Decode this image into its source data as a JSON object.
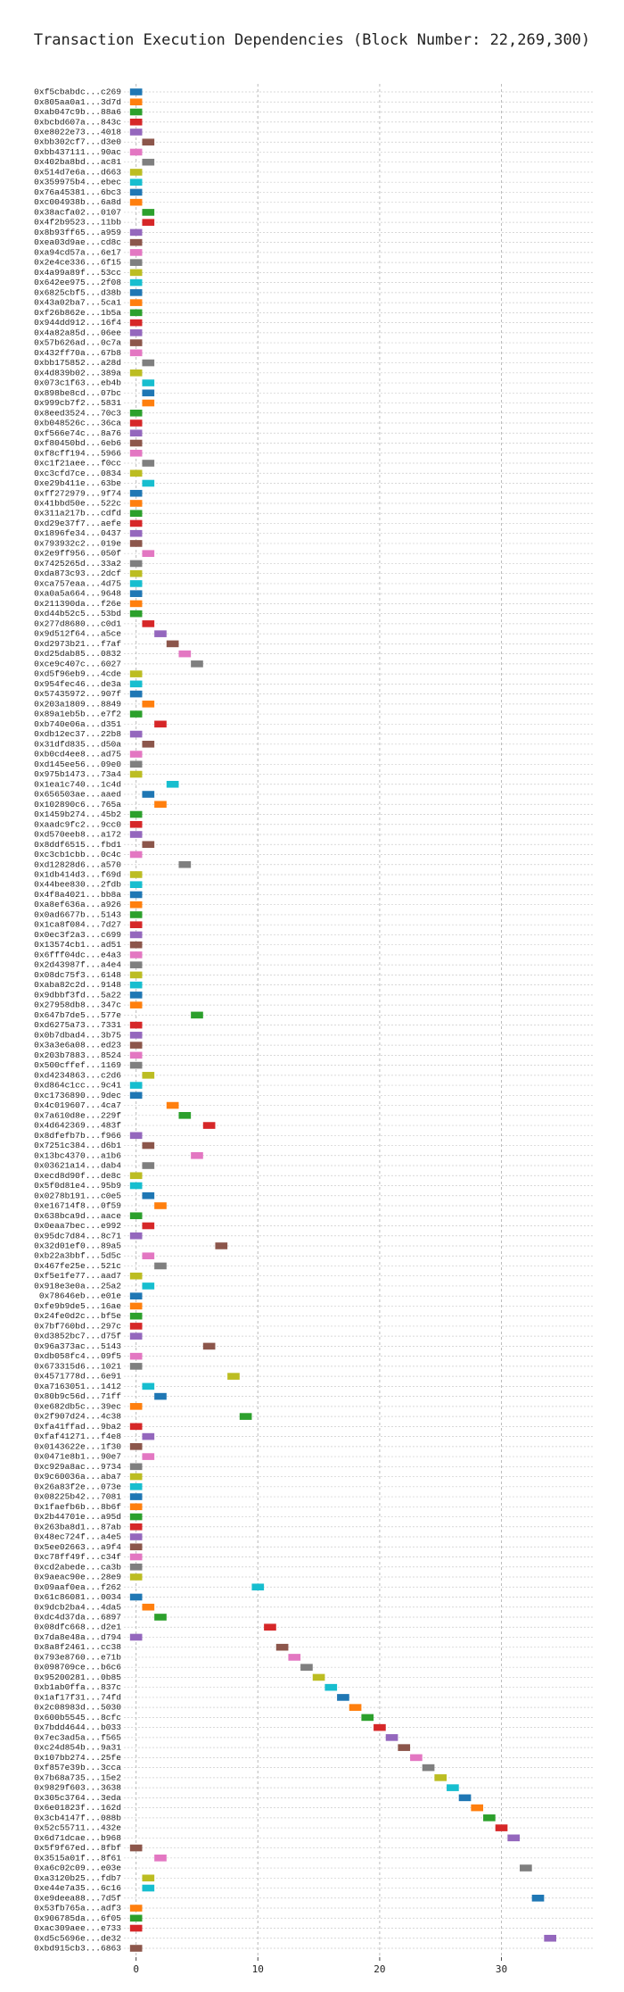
{
  "chart_data": {
    "type": "timeline",
    "title": "Transaction Execution Dependencies (Block Number: 22,269,300)",
    "categories": [
      "0xf5cbabdc...c269",
      "0x805aa0a1...3d7d",
      "0xab047c9b...88a6",
      "0xbcbd607a...843c",
      "0xe8022e73...4018",
      "0xbb302cf7...d3e0",
      "0xbb437111...90ac",
      "0x402ba8bd...ac81",
      "0x514d7e6a...d663",
      "0x359975b4...ebec",
      "0x76a45381...6bc3",
      "0xc004938b...6a8d",
      "0x38acfa02...0107",
      "0x4f2b9523...11bb",
      "0x8b93ff65...a959",
      "0xea03d9ae...cd8c",
      "0xa94cd57a...6e17",
      "0x2e4ce336...6f15",
      "0x4a99a89f...53cc",
      "0x642ee975...2f08",
      "0x6825cbf5...d38b",
      "0x43a02ba7...5ca1",
      "0xf26b862e...1b5a",
      "0x944dd912...16f4",
      "0x4a82a85d...06ee",
      "0x57b626ad...0c7a",
      "0x432ff70a...67b8",
      "0xbb175852...a28d",
      "0x4d839b02...389a",
      "0x073c1f63...eb4b",
      "0x898be8cd...07bc",
      "0x999cb7f2...5831",
      "0x8eed3524...70c3",
      "0xb048526c...36ca",
      "0xf566e74c...8a76",
      "0xf80450bd...6eb6",
      "0xf8cff194...5966",
      "0xc1f21aee...f0cc",
      "0xc3cfd7ce...0834",
      "0xe29b411e...63be",
      "0xff272979...9f74",
      "0x41bbd50e...522c",
      "0x311a217b...cdfd",
      "0xd29e37f7...aefe",
      "0x1896fe34...0437",
      "0x793932c2...019e",
      "0x2e9ff956...050f",
      "0x7425265d...33a2",
      "0xda873c93...2dcf",
      "0xca757eaa...4d75",
      "0xa0a5a664...9648",
      "0x211390da...f26e",
      "0xd44b52c5...53bd",
      "0x277d8680...c0d1",
      "0x9d512f64...a5ce",
      "0xd2973b21...f7af",
      "0xd25dab85...0832",
      "0xce9c407c...6027",
      "0xd5f96eb9...4cde",
      "0x954fec46...de3a",
      "0x57435972...907f",
      "0x203a1809...8849",
      "0x89a1eb5b...e7f2",
      "0xb740e06a...d351",
      "0xdb12ec37...22b8",
      "0x31dfd835...d50a",
      "0xb0cd4ee8...ad75",
      "0xd145ee56...09e0",
      "0x975b1473...73a4",
      "0x1ea1c740...1c4d",
      "0x656503ae...aaed",
      "0x102890c6...765a",
      "0x1459b274...45b2",
      "0xaadc9fc2...9cc0",
      "0xd570eeb8...a172",
      "0x8ddf6515...fbd1",
      "0xc3cb1cbb...0c4c",
      "0xd12828d6...a570",
      "0x1db414d3...f69d",
      "0x44bee830...2fdb",
      "0x4f8a4021...bb8a",
      "0xa8ef636a...a926",
      "0x0ad6677b...5143",
      "0x1ca8f084...7d27",
      "0x0ec3f2a3...c699",
      "0x13574cb1...ad51",
      "0x6fff04dc...e4a3",
      "0x2d43987f...a4e4",
      "0x08dc75f3...6148",
      "0xaba82c2d...9148",
      "0x9dbbf3fd...5a22",
      "0x27958db8...347c",
      "0x647b7de5...577e",
      "0xd6275a73...7331",
      "0x0b7dbad4...3b75",
      "0x3a3e6a08...ed23",
      "0x203b7883...8524",
      "0x500cffef...1169",
      "0xd4234863...c2d6",
      "0xd864c1cc...9c41",
      "0xc1736890...9dec",
      "0x4c019607...4ca7",
      "0x7a610d8e...229f",
      "0x4d642369...483f",
      "0x8dfefb7b...f966",
      "0x7251c384...d6b1",
      "0x13bc4370...a1b6",
      "0x03621a14...dab4",
      "0xecd8d90f...de8c",
      "0x5f0d81e4...95b9",
      "0x0278b191...c0e5",
      "0xe16714f8...0f59",
      "0x638bca9d...aace",
      "0x0eaa7bec...e992",
      "0x95dc7d84...8c71",
      "0x32d01ef0...89a5",
      "0xb22a3bbf...5d5c",
      "0x467fe25e...521c",
      "0xf5e1fe77...aad7",
      "0x918e3e0a...25a2",
      "0x78646eb...e01e",
      "0xfe9b9de5...16ae",
      "0x24fe0d2c...bf5e",
      "0x7bf760bd...297c",
      "0xd3852bc7...d75f",
      "0x96a373ac...5143",
      "0xdb058fc4...09f5",
      "0x673315d6...1021",
      "0x4571778d...6e91",
      "0xa7163051...1412",
      "0x80b9c56d...71ff",
      "0xe682db5c...39ec",
      "0x2f907d24...4c38",
      "0xfa41ffad...9ba2",
      "0xfaf41271...f4e8",
      "0x0143622e...1f30",
      "0x0471e8b1...90e7",
      "0xc929a8ac...9734",
      "0x9c60036a...aba7",
      "0x26a83f2e...073e",
      "0x08225b42...7081",
      "0x1faefb6b...8b6f",
      "0x2b44701e...a95d",
      "0x263ba8d1...87ab",
      "0x48ec724f...a4e5",
      "0x5ee02663...a9f4",
      "0xc78ff49f...c34f",
      "0xcd2abede...ca3b",
      "0x9aeac90e...28e9",
      "0x09aaf0ea...f262",
      "0x61c86081...0034",
      "0x9dcb2ba4...4da5",
      "0xdc4d37da...6897",
      "0x08dfc668...d2e1",
      "0x7da8e48a...d794",
      "0x8a8f2461...cc38",
      "0x793e8760...e71b",
      "0x098709ce...b6c6",
      "0x95200281...0b85",
      "0xb1ab0ffa...837c",
      "0x1af17f31...74fd",
      "0x2c08983d...5030",
      "0x600b5545...8cfc",
      "0x7bdd4644...b033",
      "0x7ec3ad5a...f565",
      "0xc24d854b...9a31",
      "0x107bb274...25fe",
      "0xf857e39b...3cca",
      "0x7b68a735...15e2",
      "0x9829f603...3638",
      "0x305c3764...3eda",
      "0x6e01823f...162d",
      "0x3cb4147f...088b",
      "0x52c55711...432e",
      "0x6d71dcae...b968",
      "0x5f9f67ed...8fbf",
      "0x3515a01f...8f61",
      "0xa6c02c09...e03e",
      "0xa3120b25...fdb7",
      "0xe44e7a35...6c16",
      "0xe9deea88...7d5f",
      "0x53fb765a...adf3",
      "0x906785da...6f05",
      "0xac309aee...e733",
      "0xd5c5696e...de32",
      "0xbd915cb3...6863"
    ],
    "values": [
      0,
      0,
      0,
      0,
      0,
      1,
      0,
      1,
      0,
      0,
      0,
      0,
      1,
      1,
      0,
      0,
      0,
      0,
      0,
      0,
      0,
      0,
      0,
      0,
      0,
      0,
      0,
      1,
      0,
      1,
      1,
      1,
      0,
      0,
      0,
      0,
      0,
      1,
      0,
      1,
      0,
      0,
      0,
      0,
      0,
      0,
      1,
      0,
      0,
      0,
      0,
      0,
      0,
      1,
      2,
      3,
      4,
      5,
      0,
      0,
      0,
      1,
      0,
      2,
      0,
      1,
      0,
      0,
      0,
      3,
      1,
      2,
      0,
      0,
      0,
      1,
      0,
      4,
      0,
      0,
      0,
      0,
      0,
      0,
      0,
      0,
      0,
      0,
      0,
      0,
      0,
      0,
      5,
      0,
      0,
      0,
      0,
      0,
      1,
      0,
      0,
      3,
      4,
      6,
      0,
      1,
      5,
      1,
      0,
      0,
      1,
      2,
      0,
      1,
      0,
      7,
      1,
      2,
      0,
      1,
      0,
      0,
      0,
      0,
      0,
      6,
      0,
      0,
      8,
      1,
      2,
      0,
      9,
      0,
      1,
      0,
      1,
      0,
      0,
      0,
      0,
      0,
      0,
      0,
      0,
      0,
      0,
      0,
      0,
      10,
      0,
      1,
      2,
      11,
      0,
      12,
      13,
      14,
      15,
      16,
      17,
      18,
      19,
      20,
      21,
      22,
      23,
      24,
      25,
      26,
      27,
      28,
      29,
      30,
      31,
      0,
      2,
      32,
      1,
      1,
      33,
      0,
      0,
      0,
      34,
      0
    ],
    "colors": [
      "#1f77b4",
      "#ff7f0e",
      "#2ca02c",
      "#d62728",
      "#9467bd",
      "#8c564b",
      "#e377c2",
      "#7f7f7f",
      "#bcbd22",
      "#17becf"
    ],
    "xlim": [
      -1,
      37.5
    ],
    "xticks": [
      0,
      10,
      20,
      30
    ],
    "grid": true
  }
}
